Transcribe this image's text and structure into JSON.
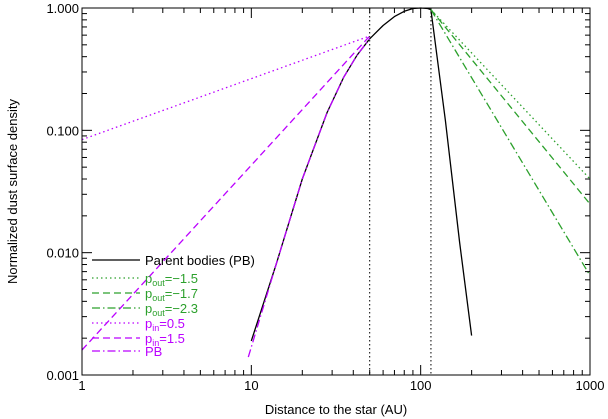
{
  "chart_data": {
    "type": "line",
    "xlabel": "Distance to the star (AU)",
    "ylabel": "Normalized dust surface density",
    "x_scale": "log",
    "y_scale": "log",
    "xlim": [
      1,
      1000
    ],
    "ylim": [
      0.001,
      1.0
    ],
    "x_ticks": [
      {
        "value": 1,
        "label": "1"
      },
      {
        "value": 10,
        "label": "10"
      },
      {
        "value": 100,
        "label": "100"
      },
      {
        "value": 1000,
        "label": "1000"
      }
    ],
    "y_ticks": [
      {
        "value": 0.001,
        "label": "0.001"
      },
      {
        "value": 0.01,
        "label": "0.010"
      },
      {
        "value": 0.1,
        "label": "0.100"
      },
      {
        "value": 1.0,
        "label": "1.000"
      }
    ],
    "vlines": [
      50,
      115
    ],
    "legend_position": "lower-left",
    "series": [
      {
        "id": "pb",
        "label": "Parent bodies (PB)",
        "color": "#000000",
        "dash": "solid",
        "x": [
          10,
          14,
          20,
          28,
          35,
          42,
          50,
          60,
          70,
          80,
          90,
          100,
          110,
          115,
          140,
          170,
          200
        ],
        "y": [
          0.0019,
          0.008,
          0.04,
          0.14,
          0.27,
          0.41,
          0.56,
          0.72,
          0.85,
          0.94,
          0.99,
          1.0,
          0.99,
          0.97,
          0.12,
          0.012,
          0.0021
        ]
      },
      {
        "id": "pout15",
        "label_pre": "p",
        "label_sub": "out",
        "label_post": "=−1.5",
        "color": "#2ca02c",
        "dash": "dot",
        "x": [
          115,
          1000
        ],
        "y": [
          0.97,
          0.04
        ]
      },
      {
        "id": "pout17",
        "label_pre": "p",
        "label_sub": "out",
        "label_post": "=−1.7",
        "color": "#2ca02c",
        "dash": "dash",
        "x": [
          115,
          1000
        ],
        "y": [
          0.97,
          0.025
        ]
      },
      {
        "id": "pout23",
        "label_pre": "p",
        "label_sub": "out",
        "label_post": "=−2.3",
        "color": "#2ca02c",
        "dash": "dashdot",
        "x": [
          115,
          1000
        ],
        "y": [
          0.97,
          0.0065
        ]
      },
      {
        "id": "pin05",
        "label_pre": "p",
        "label_sub": "in",
        "label_post": "=0.5",
        "color": "#bb00ff",
        "dash": "dot",
        "x": [
          1,
          50
        ],
        "y": [
          0.084,
          0.59
        ]
      },
      {
        "id": "pin15",
        "label_pre": "p",
        "label_sub": "in",
        "label_post": "=1.5",
        "color": "#bb00ff",
        "dash": "dash",
        "x": [
          1,
          50
        ],
        "y": [
          0.0016,
          0.59
        ]
      },
      {
        "id": "pbm",
        "label": "PB",
        "color": "#bb00ff",
        "dash": "dashdot",
        "x": [
          9.6,
          14,
          20,
          28,
          35,
          42,
          50
        ],
        "y": [
          0.0014,
          0.008,
          0.04,
          0.14,
          0.27,
          0.41,
          0.56
        ]
      }
    ]
  }
}
